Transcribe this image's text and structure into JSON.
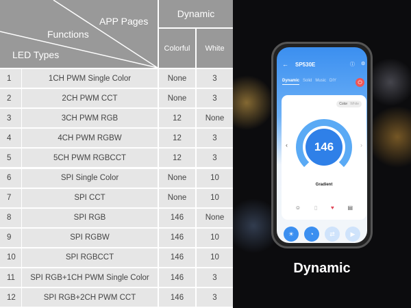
{
  "table": {
    "header": {
      "app_pages": "APP Pages",
      "functions": "Functions",
      "led_types": "LED Types",
      "dynamic": "Dynamic",
      "colorful": "Colorful",
      "white": "White"
    },
    "rows": [
      {
        "no": "1",
        "type": "1CH PWM Single Color",
        "colorful": "None",
        "white": "3"
      },
      {
        "no": "2",
        "type": "2CH PWM CCT",
        "colorful": "None",
        "white": "3"
      },
      {
        "no": "3",
        "type": "3CH PWM RGB",
        "colorful": "12",
        "white": "None"
      },
      {
        "no": "4",
        "type": "4CH PWM RGBW",
        "colorful": "12",
        "white": "3"
      },
      {
        "no": "5",
        "type": "5CH PWM RGBCCT",
        "colorful": "12",
        "white": "3"
      },
      {
        "no": "6",
        "type": "SPI Single Color",
        "colorful": "None",
        "white": "10"
      },
      {
        "no": "7",
        "type": "SPI CCT",
        "colorful": "None",
        "white": "10"
      },
      {
        "no": "8",
        "type": "SPI RGB",
        "colorful": "146",
        "white": "None"
      },
      {
        "no": "9",
        "type": "SPI RGBW",
        "colorful": "146",
        "white": "10"
      },
      {
        "no": "10",
        "type": "SPI RGBCCT",
        "colorful": "146",
        "white": "10"
      },
      {
        "no": "11",
        "type": "SPI RGB+1CH PWM Single Color",
        "colorful": "146",
        "white": "3"
      },
      {
        "no": "12",
        "type": "SPI RGB+2CH PWM CCT",
        "colorful": "146",
        "white": "3"
      }
    ]
  },
  "phone": {
    "device": "SP530E",
    "tabs": [
      "Dynamic",
      "Solid",
      "Music",
      "DIY"
    ],
    "toggle": [
      "Color",
      "White"
    ],
    "value": "146",
    "mode": "Gradient",
    "accent": "#3b8ff0"
  },
  "caption": "Dynamic"
}
